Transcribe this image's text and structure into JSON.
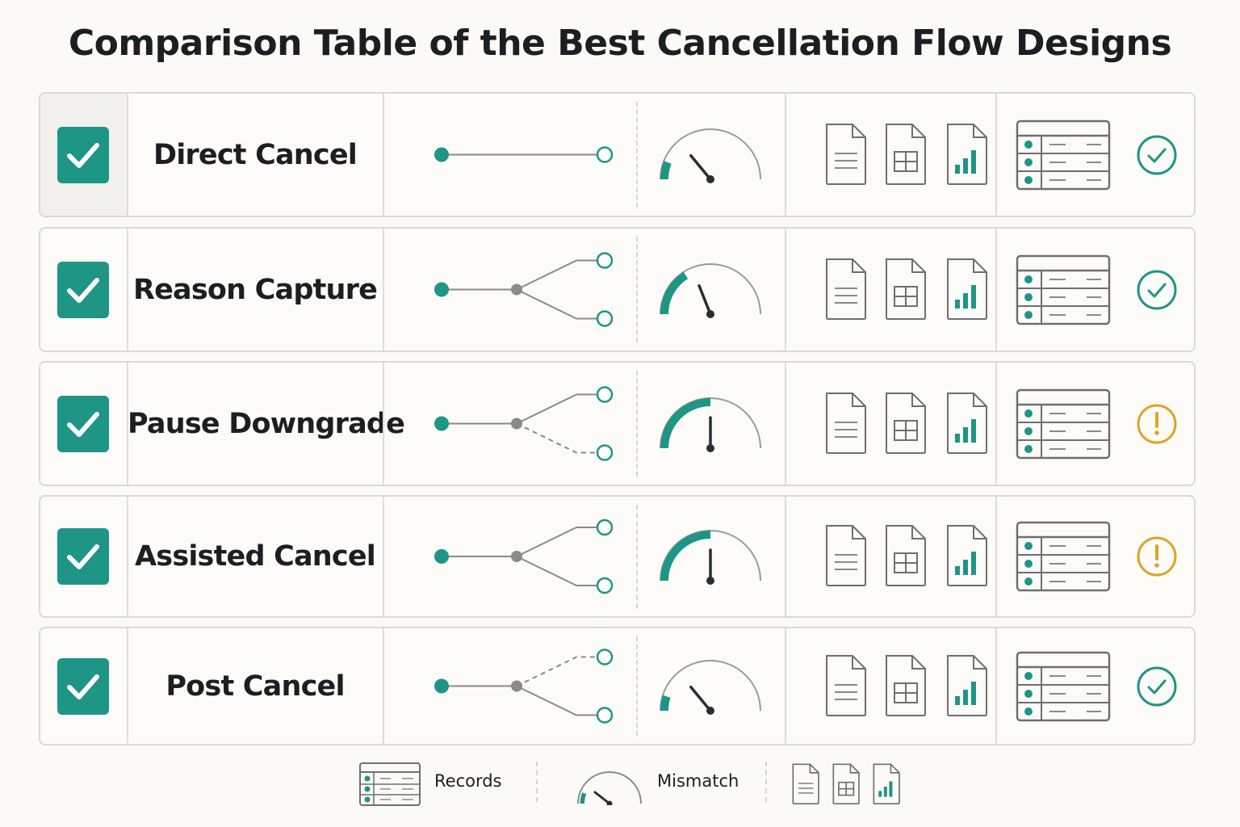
{
  "title": "Comparison Table of the Best Cancellation Flow Designs",
  "colors": {
    "accent": "#1f9585",
    "warning": "#dba626",
    "gray": "#8a8a8a",
    "needle": "#2b2e31",
    "icon_outline": "#6f6f6f"
  },
  "rows": [
    {
      "name": "Direct Cancel",
      "checked": true,
      "flow": "direct",
      "mismatch": 0.12,
      "status": "check-circle-icon"
    },
    {
      "name": "Reason Capture",
      "checked": true,
      "flow": "split-solid",
      "mismatch": 0.32,
      "status": "check-circle-icon"
    },
    {
      "name": "Pause Downgrade",
      "checked": true,
      "flow": "split-dashed-lower",
      "mismatch": 0.5,
      "status": "exclamation-circle-icon"
    },
    {
      "name": "Assisted Cancel",
      "checked": true,
      "flow": "split-solid",
      "mismatch": 0.5,
      "status": "exclamation-circle-icon"
    },
    {
      "name": "Post Cancel",
      "checked": true,
      "flow": "split-dashed-upper",
      "mismatch": 0.1,
      "status": "check-circle-icon"
    }
  ],
  "legend": {
    "records_label": "Records",
    "mismatch_label": "Mismatch"
  }
}
